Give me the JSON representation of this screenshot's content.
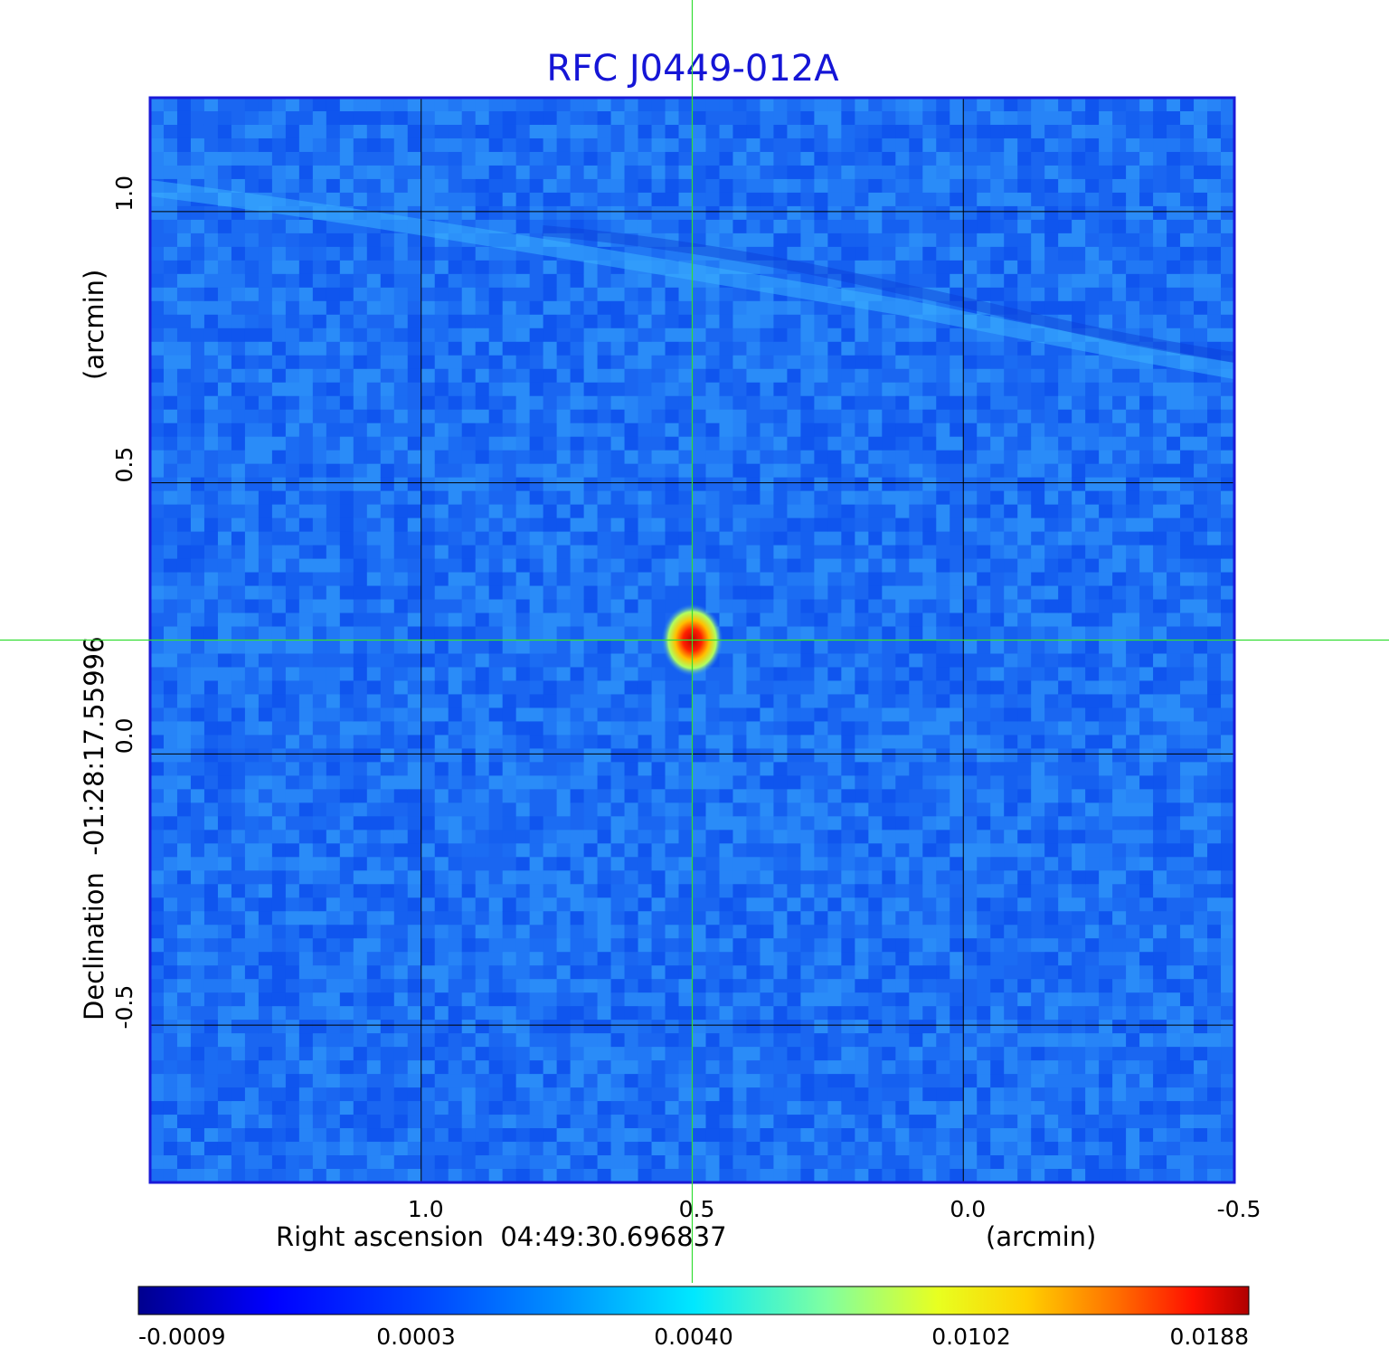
{
  "chart_data": {
    "type": "heatmap",
    "title": "RFC J0449-012A",
    "xlabel": "Right ascension  04:49:30.696837",
    "xunit": "(arcmin)",
    "ylabel": "Declination  -01:28:17.55996",
    "yunit": "(arcmin)",
    "x_range": [
      1.5,
      -0.5
    ],
    "y_range": [
      -0.79,
      1.21
    ],
    "x_ticks": [
      {
        "value": 1.0,
        "label": "1.0"
      },
      {
        "value": 0.5,
        "label": "0.5"
      },
      {
        "value": 0.0,
        "label": "0.0"
      },
      {
        "value": -0.5,
        "label": "-0.5"
      }
    ],
    "y_ticks": [
      {
        "value": 1.0,
        "label": "1.0"
      },
      {
        "value": 0.5,
        "label": "0.5"
      },
      {
        "value": 0.0,
        "label": "0.0"
      },
      {
        "value": -0.5,
        "label": "-0.5"
      }
    ],
    "grid": true,
    "crosshair": {
      "x": 0.5,
      "y": 0.21
    },
    "source_peak": {
      "x": 0.5,
      "y": 0.21,
      "value": 0.0188
    },
    "colormap": "jet",
    "colorbar": {
      "placement": "bottom",
      "ticks": [
        "-0.0009",
        "0.0003",
        "0.0040",
        "0.0102",
        "0.0188"
      ]
    },
    "colors": {
      "title": "#1515d6",
      "frame": "#1a1ad8",
      "grid": "#000000",
      "crosshair": "#33dd33"
    }
  }
}
